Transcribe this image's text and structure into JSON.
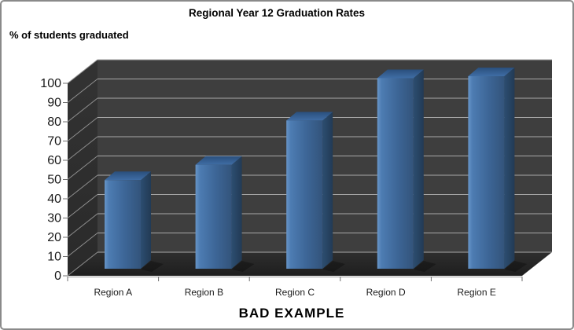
{
  "chart": {
    "title": "Regional Year 12 Graduation Rates",
    "y_axis_title": "% of students graduated",
    "caption": "BAD EXAMPLE"
  },
  "chart_data": {
    "type": "bar",
    "subtype": "3d-column",
    "title": "Regional Year 12 Graduation Rates",
    "xlabel": "",
    "ylabel": "% of students graduated",
    "categories": [
      "Region A",
      "Region B",
      "Region C",
      "Region D",
      "Region E"
    ],
    "values": [
      46,
      54,
      77,
      99,
      100
    ],
    "ylim": [
      0,
      100
    ],
    "yticks": [
      0,
      10,
      20,
      30,
      40,
      50,
      60,
      70,
      80,
      90,
      100
    ],
    "grid": true,
    "legend": false,
    "annotation": "BAD EXAMPLE",
    "colors": {
      "bar_front_light": "#6795c8",
      "bar_front_mid": "#4d7cb2",
      "bar_front": "#3d6697",
      "bar_front_dark": "#33547b",
      "bar_top_back": "#2a4f7c",
      "bar_top_front": "#3f6da5",
      "bar_side_light": "#2c4d70",
      "bar_side_dark": "#223a55",
      "wall_back": "#3e3e3e",
      "wall_side": "#333333",
      "wall_side_dark": "#2a2a2a",
      "floor": "#2e2e2e",
      "floor_dark": "#1e1e1e",
      "gridline": "#a8a8a8",
      "diagonal": "#8f8f8f",
      "axis_line": "#9a9a9a",
      "tick": "#6f6f6f",
      "axis_text": "#1a1a1a",
      "background": "#ffffff",
      "border": "#8a8a8a"
    }
  }
}
